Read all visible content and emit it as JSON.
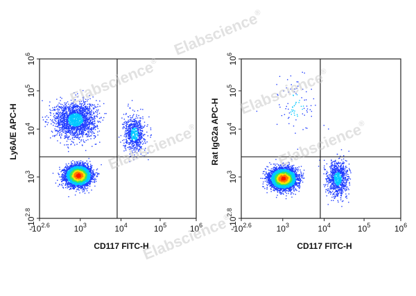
{
  "watermark": "Elabscience",
  "watermark_mark": "®",
  "colors": {
    "frame": "#222222",
    "gate": "#222222",
    "density_low": "#1f3cff",
    "density_mid1": "#00c8ff",
    "density_mid2": "#3de85a",
    "density_high1": "#ffe600",
    "density_high2": "#ff7a00",
    "density_peak": "#ff1a00"
  },
  "chart_data": [
    {
      "type": "scatter",
      "subtype": "flow-cytometry-density-dotplot",
      "xlabel": "CD117 FITC-H",
      "ylabel": "Ly6A/E APC-H",
      "x_scale": "biexponential",
      "y_scale": "biexponential",
      "xlim": [
        -398,
        1000000
      ],
      "ylim": [
        -631,
        1000000
      ],
      "x_ticks": [
        {
          "base": "-10",
          "exp": "2.6"
        },
        {
          "base": "10",
          "exp": "3"
        },
        {
          "base": "10",
          "exp": "4"
        },
        {
          "base": "10",
          "exp": "5"
        },
        {
          "base": "10",
          "exp": "6"
        }
      ],
      "y_ticks": [
        {
          "base": "-10",
          "exp": "2.8"
        },
        {
          "base": "10",
          "exp": "3"
        },
        {
          "base": "10",
          "exp": "4"
        },
        {
          "base": "10",
          "exp": "5"
        },
        {
          "base": "10",
          "exp": "6"
        }
      ],
      "quadrant_gate": {
        "x": 7000,
        "y": 1800
      },
      "populations": [
        {
          "label": "dense-negative",
          "x_center": 600,
          "y_center": 550,
          "count": 4200
        },
        {
          "label": "ly6a-positive",
          "x_center": 500,
          "y_center": 20000,
          "count": 1900
        },
        {
          "label": "cd117-positive",
          "x_center": 20000,
          "y_center": 8000,
          "count": 700
        }
      ]
    },
    {
      "type": "scatter",
      "subtype": "flow-cytometry-density-dotplot",
      "xlabel": "CD117 FITC-H",
      "ylabel": "Rat IgG2a APC-H",
      "x_scale": "biexponential",
      "y_scale": "biexponential",
      "xlim": [
        -398,
        1000000
      ],
      "ylim": [
        -631,
        1000000
      ],
      "x_ticks": [
        {
          "base": "-10",
          "exp": "2.6"
        },
        {
          "base": "10",
          "exp": "3"
        },
        {
          "base": "10",
          "exp": "4"
        },
        {
          "base": "10",
          "exp": "5"
        },
        {
          "base": "10",
          "exp": "6"
        }
      ],
      "y_ticks": [
        {
          "base": "-10",
          "exp": "2.8"
        },
        {
          "base": "10",
          "exp": "3"
        },
        {
          "base": "10",
          "exp": "4"
        },
        {
          "base": "10",
          "exp": "5"
        },
        {
          "base": "10",
          "exp": "6"
        }
      ],
      "quadrant_gate": {
        "x": 7000,
        "y": 1800
      },
      "populations": [
        {
          "label": "dense-negative",
          "x_center": 700,
          "y_center": 450,
          "count": 4600
        },
        {
          "label": "cd117-positive",
          "x_center": 20000,
          "y_center": 450,
          "count": 900
        },
        {
          "label": "sparse-upper",
          "x_center": 1500,
          "y_center": 50000,
          "count": 90
        }
      ]
    }
  ]
}
